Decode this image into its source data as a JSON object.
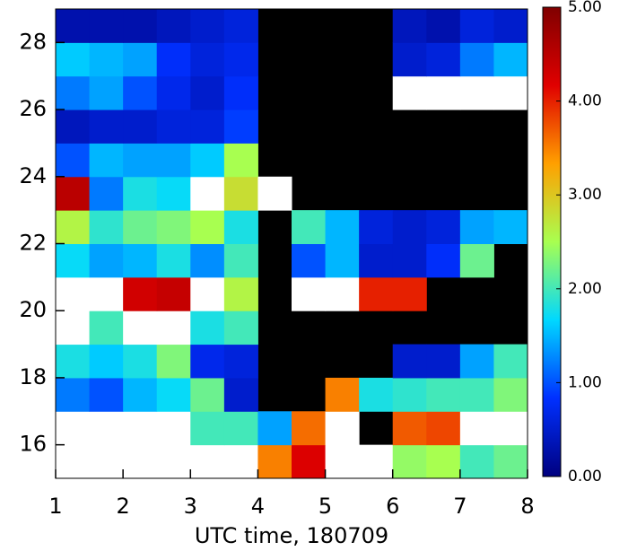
{
  "chart_data": {
    "type": "heatmap",
    "xlabel": "UTC time, 180709",
    "x": [
      1,
      1.5,
      2,
      2.5,
      3,
      3.5,
      4,
      4.5,
      5,
      5.5,
      6,
      6.5,
      7,
      7.5,
      8
    ],
    "y": [
      15,
      16,
      17,
      18,
      19,
      20,
      21,
      22,
      23,
      24,
      25,
      26,
      27,
      28,
      29
    ],
    "values": [
      [
        6,
        6,
        6,
        6,
        6,
        6,
        3.5,
        4.2,
        6,
        6,
        2.4,
        2.5,
        2.0,
        2.2
      ],
      [
        6,
        6,
        6,
        6,
        2.0,
        2.0,
        1.4,
        3.6,
        6,
        null,
        3.7,
        3.8,
        6,
        6
      ],
      [
        1.2,
        1.0,
        1.5,
        1.7,
        2.2,
        0.5,
        null,
        null,
        3.5,
        1.8,
        1.9,
        2.0,
        2.0,
        2.3
      ],
      [
        1.8,
        1.6,
        1.8,
        2.3,
        0.7,
        0.6,
        null,
        null,
        null,
        null,
        0.5,
        0.5,
        1.4,
        2.0
      ],
      [
        6,
        2.0,
        6,
        6,
        1.8,
        2.0,
        null,
        null,
        null,
        null,
        null,
        null,
        null,
        null
      ],
      [
        6,
        6,
        4.3,
        4.4,
        6,
        2.6,
        null,
        6,
        6,
        4.0,
        4.0,
        null,
        null,
        null
      ],
      [
        1.7,
        1.4,
        1.5,
        1.8,
        1.3,
        2.0,
        null,
        1.0,
        1.5,
        0.5,
        0.5,
        0.8,
        2.2,
        null
      ],
      [
        2.6,
        1.9,
        2.2,
        2.3,
        2.5,
        1.8,
        null,
        2.0,
        1.5,
        0.6,
        0.5,
        0.6,
        1.4,
        1.5
      ],
      [
        4.5,
        1.2,
        1.8,
        1.7,
        6,
        2.8,
        6,
        null,
        null,
        null,
        null,
        null,
        null,
        null
      ],
      [
        1.0,
        1.5,
        1.4,
        1.4,
        1.6,
        2.5,
        null,
        null,
        null,
        null,
        null,
        null,
        null,
        null
      ],
      [
        0.4,
        0.5,
        0.5,
        0.6,
        0.6,
        0.9,
        null,
        null,
        null,
        null,
        null,
        null,
        null,
        null
      ],
      [
        1.2,
        1.4,
        1.0,
        0.7,
        0.5,
        0.8,
        null,
        null,
        null,
        null,
        6,
        6,
        6,
        6
      ],
      [
        1.6,
        1.5,
        1.4,
        0.8,
        0.6,
        0.7,
        null,
        null,
        null,
        null,
        0.5,
        0.6,
        1.2,
        1.5
      ],
      [
        0.3,
        0.3,
        0.3,
        0.4,
        0.5,
        0.6,
        null,
        null,
        null,
        null,
        0.4,
        0.3,
        0.6,
        0.5
      ]
    ],
    "xlim": [
      1,
      8
    ],
    "ylim": [
      15,
      29
    ],
    "xticks": [
      1,
      2,
      3,
      4,
      5,
      6,
      7,
      8
    ],
    "yticks": [
      16,
      18,
      20,
      22,
      24,
      26,
      28
    ],
    "zlim": [
      0,
      5
    ],
    "zticks": [
      {
        "value": 0,
        "label": "0.00"
      },
      {
        "value": 1,
        "label": "1.00"
      },
      {
        "value": 2,
        "label": "2.00"
      },
      {
        "value": 3,
        "label": "3.00"
      },
      {
        "value": 4,
        "label": "4.00"
      },
      {
        "value": 5,
        "label": "5.00"
      }
    ],
    "colormap": [
      "#00007f",
      "#0030ff",
      "#00d8ff",
      "#a8ff50",
      "#ffa000",
      "#e00000",
      "#800000"
    ],
    "over_color": "#ffffff",
    "missing_color": "#000000"
  }
}
